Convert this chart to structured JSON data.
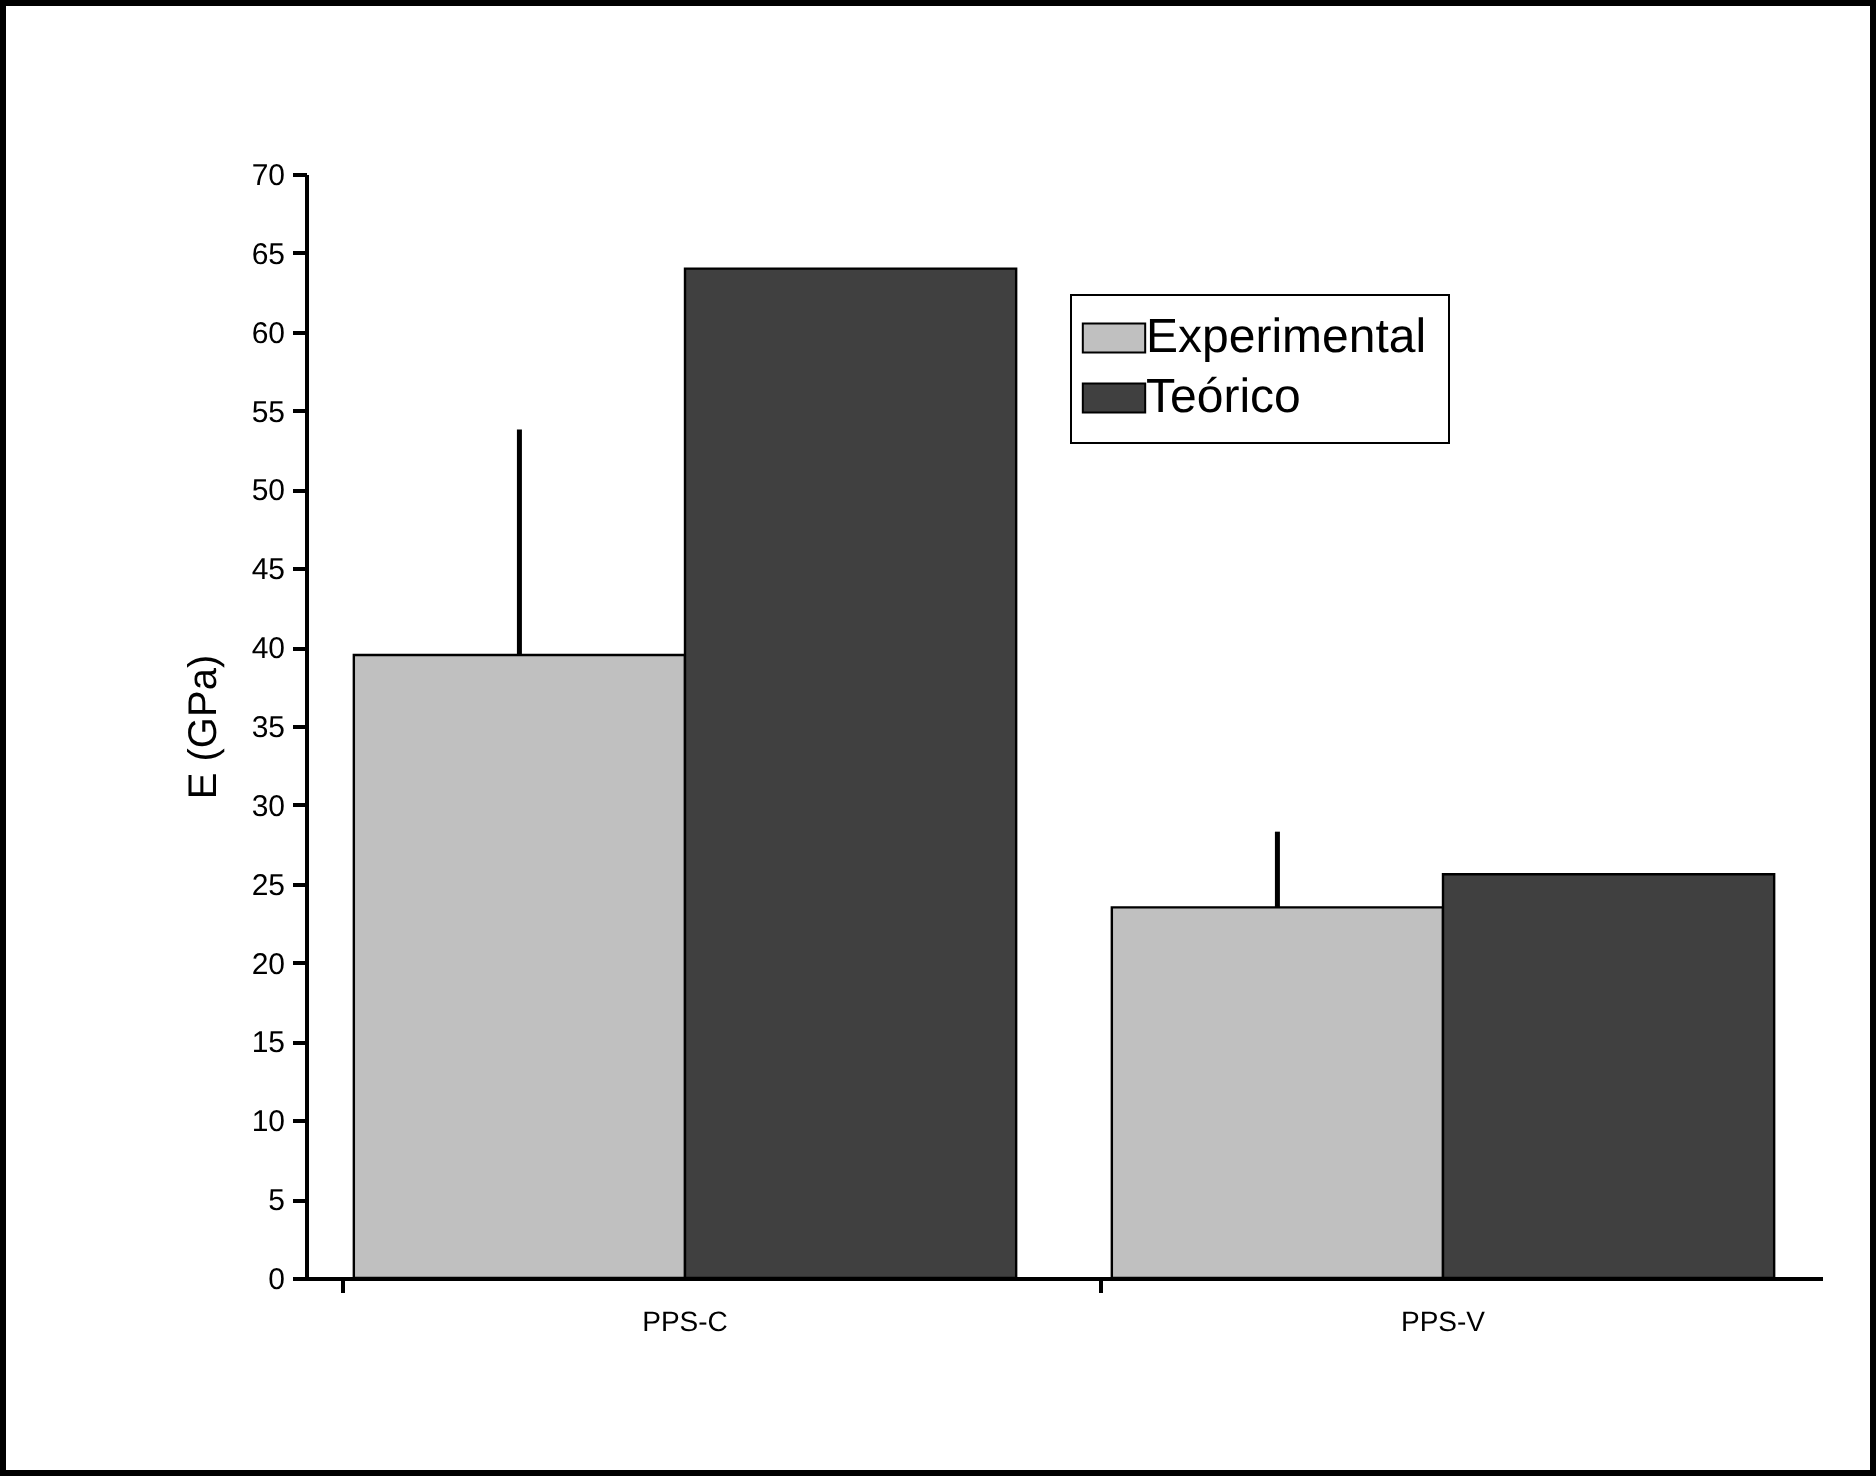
{
  "chart_data": {
    "type": "bar",
    "ylabel": "E (GPa)",
    "categories": [
      "PPS-C",
      "PPS-V"
    ],
    "series": [
      {
        "name": "Experimental",
        "color": "#c0c0c0",
        "values": [
          39.5,
          23.5
        ],
        "errors": [
          [
            39.5,
            53.8
          ],
          [
            23.5,
            28.3
          ]
        ]
      },
      {
        "name": "Teórico",
        "color": "#404040",
        "values": [
          64.0,
          25.6
        ]
      }
    ],
    "ylim": [
      0,
      70
    ],
    "yticks": [
      0,
      5,
      10,
      15,
      20,
      25,
      30,
      35,
      40,
      45,
      50,
      55,
      60,
      65,
      70
    ],
    "legend": "top right"
  }
}
